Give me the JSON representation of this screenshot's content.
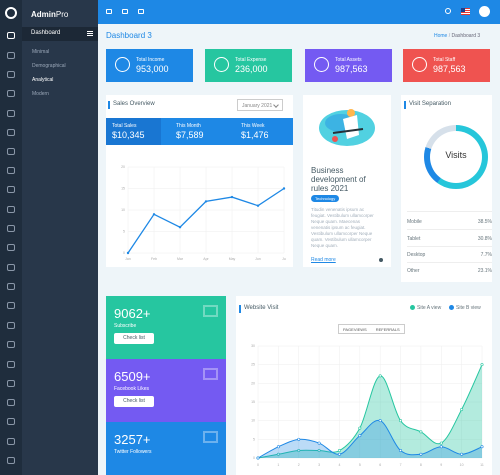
{
  "brand": {
    "bold": "Admin",
    "light": "Pro"
  },
  "sidebar": {
    "header": "Dashboard",
    "items": [
      "Minimal",
      "Demographical",
      "Analytical",
      "Modern"
    ]
  },
  "page": {
    "title": "Dashboard 3",
    "breadcrumb": {
      "home": "Home",
      "sep": "/",
      "current": "Dashboard 3"
    }
  },
  "stats": [
    {
      "label": "Total Income",
      "value": "953,000",
      "color": "#1e88e5"
    },
    {
      "label": "Total Expense",
      "value": "236,000",
      "color": "#26c6a0"
    },
    {
      "label": "Total Assets",
      "value": "987,563",
      "color": "#745af2"
    },
    {
      "label": "Total Staff",
      "value": "987,563",
      "color": "#ef5350"
    }
  ],
  "sales_overview": {
    "title": "Sales Overview",
    "select": "January 2021",
    "summary": [
      {
        "label": "Total Sales",
        "value": "$10,345"
      },
      {
        "label": "This Month",
        "value": "$7,589"
      },
      {
        "label": "This Week",
        "value": "$1,476"
      }
    ],
    "chart_data": {
      "type": "line",
      "categories": [
        "Jan",
        "Feb",
        "Mar",
        "Apr",
        "May",
        "Jun",
        "Ju"
      ],
      "values": [
        0,
        9,
        6,
        12,
        13,
        11,
        15
      ],
      "ylim": [
        0,
        20
      ],
      "yticks": [
        "0",
        "5",
        "10",
        "15",
        "20"
      ],
      "color": "#1e88e5"
    }
  },
  "blog": {
    "title": "Business development of rules 2021",
    "badge": "Technology",
    "text": "Titudin venenatis ipsum ac feugiat. Vestibulum ullamcorper Neque quam. Maecenas venenatis ipsum ac feugiat. Vestibulum ullamcorper Neque quam. Vestibulum ullamcorper Neque quam.",
    "link": "Read more"
  },
  "visit_separation": {
    "title": "Visit Separation",
    "center_label": "Visits",
    "rows": [
      {
        "label": "Mobile",
        "value": "38.5%"
      },
      {
        "label": "Tablet",
        "value": "30.8%"
      },
      {
        "label": "Desktop",
        "value": "7.7%"
      },
      {
        "label": "Other",
        "value": "23.1%"
      }
    ]
  },
  "social": [
    {
      "number": "9062+",
      "label": "Subscribe",
      "button": "Check list",
      "color": "#26c6a0",
      "icon": "mail-icon"
    },
    {
      "number": "6509+",
      "label": "Facebook Likes",
      "button": "Check list",
      "color": "#745af2",
      "icon": "facebook-icon"
    },
    {
      "number": "3257+",
      "label": "Twitter Followers",
      "button": "Check list",
      "color": "#1e88e5",
      "icon": "twitter-icon"
    }
  ],
  "website_visit": {
    "title": "Website Visit",
    "tabs": [
      "PAGEVIEWS",
      "REFERRALS"
    ],
    "chart_data": {
      "type": "area",
      "x": [
        "0",
        "1",
        "2",
        "3",
        "4",
        "5",
        "6",
        "7",
        "8",
        "9",
        "10",
        "11"
      ],
      "series": [
        {
          "name": "Site A view",
          "color": "#26c6a0",
          "values": [
            0,
            1,
            2,
            2,
            2,
            8,
            22,
            10,
            7,
            4,
            13,
            25
          ]
        },
        {
          "name": "Site B view",
          "color": "#1e88e5",
          "values": [
            0,
            3,
            5,
            4,
            1,
            6,
            10,
            2,
            1,
            3,
            1,
            3
          ]
        }
      ],
      "ylim": [
        0,
        30
      ],
      "yticks": [
        "0",
        "5",
        "10",
        "15",
        "20",
        "25",
        "30"
      ]
    }
  }
}
